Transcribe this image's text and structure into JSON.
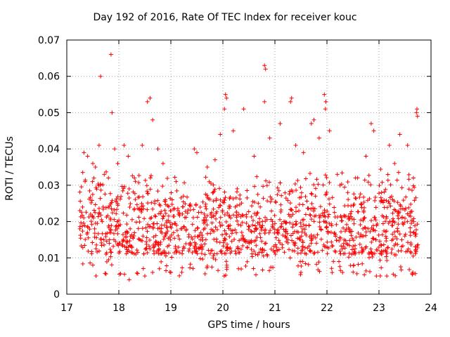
{
  "chart_data": {
    "type": "scatter",
    "title": "Day 192 of 2016, Rate Of TEC Index for receiver kouc",
    "xlabel": "GPS time / hours",
    "ylabel": "ROTI / TECUs",
    "xlim": [
      17,
      24
    ],
    "ylim": [
      0,
      0.07
    ],
    "xticks": [
      "17",
      "18",
      "19",
      "20",
      "21",
      "22",
      "23",
      "24"
    ],
    "yticks": [
      "0",
      "0.01",
      "0.02",
      "0.03",
      "0.04",
      "0.05",
      "0.06",
      "0.07"
    ],
    "grid": true,
    "marker": "+",
    "color": "#ff0000",
    "series": [
      {
        "name": "ROTI",
        "x_start": 17.25,
        "x_end": 23.75,
        "typical_range": [
          0.005,
          0.035
        ],
        "points": [
          [
            17.33,
            0.039
          ],
          [
            17.4,
            0.038
          ],
          [
            17.5,
            0.036
          ],
          [
            17.55,
            0.035
          ],
          [
            17.62,
            0.041
          ],
          [
            17.65,
            0.06
          ],
          [
            17.72,
            0.033
          ],
          [
            17.8,
            0.032
          ],
          [
            17.85,
            0.066
          ],
          [
            17.87,
            0.05
          ],
          [
            17.92,
            0.04
          ],
          [
            17.98,
            0.036
          ],
          [
            18.1,
            0.041
          ],
          [
            18.18,
            0.038
          ],
          [
            18.3,
            0.032
          ],
          [
            18.45,
            0.041
          ],
          [
            18.55,
            0.053
          ],
          [
            18.6,
            0.054
          ],
          [
            18.65,
            0.048
          ],
          [
            18.75,
            0.04
          ],
          [
            18.85,
            0.036
          ],
          [
            19.1,
            0.031
          ],
          [
            19.45,
            0.04
          ],
          [
            19.5,
            0.039
          ],
          [
            19.7,
            0.035
          ],
          [
            19.85,
            0.037
          ],
          [
            19.95,
            0.044
          ],
          [
            20.05,
            0.055
          ],
          [
            20.07,
            0.054
          ],
          [
            20.03,
            0.051
          ],
          [
            20.2,
            0.045
          ],
          [
            20.4,
            0.051
          ],
          [
            20.6,
            0.038
          ],
          [
            20.8,
            0.063
          ],
          [
            20.82,
            0.062
          ],
          [
            20.8,
            0.053
          ],
          [
            20.9,
            0.043
          ],
          [
            21.1,
            0.047
          ],
          [
            21.3,
            0.053
          ],
          [
            21.32,
            0.054
          ],
          [
            21.4,
            0.041
          ],
          [
            21.55,
            0.039
          ],
          [
            21.7,
            0.047
          ],
          [
            21.75,
            0.048
          ],
          [
            21.85,
            0.043
          ],
          [
            21.95,
            0.055
          ],
          [
            21.98,
            0.053
          ],
          [
            21.97,
            0.051
          ],
          [
            22.05,
            0.045
          ],
          [
            22.2,
            0.033
          ],
          [
            22.4,
            0.028
          ],
          [
            22.55,
            0.032
          ],
          [
            22.75,
            0.038
          ],
          [
            22.85,
            0.047
          ],
          [
            22.9,
            0.045
          ],
          [
            23.2,
            0.041
          ],
          [
            23.3,
            0.036
          ],
          [
            23.4,
            0.044
          ],
          [
            23.55,
            0.041
          ],
          [
            23.72,
            0.05
          ],
          [
            23.73,
            0.051
          ],
          [
            23.74,
            0.049
          ],
          [
            17.5,
            0.008
          ],
          [
            18.2,
            0.004
          ],
          [
            18.5,
            0.005
          ],
          [
            19.0,
            0.006
          ],
          [
            20.3,
            0.007
          ],
          [
            21.5,
            0.006
          ],
          [
            22.3,
            0.006
          ],
          [
            22.95,
            0.005
          ],
          [
            23.15,
            0.005
          ],
          [
            23.65,
            0.006
          ]
        ]
      }
    ]
  }
}
